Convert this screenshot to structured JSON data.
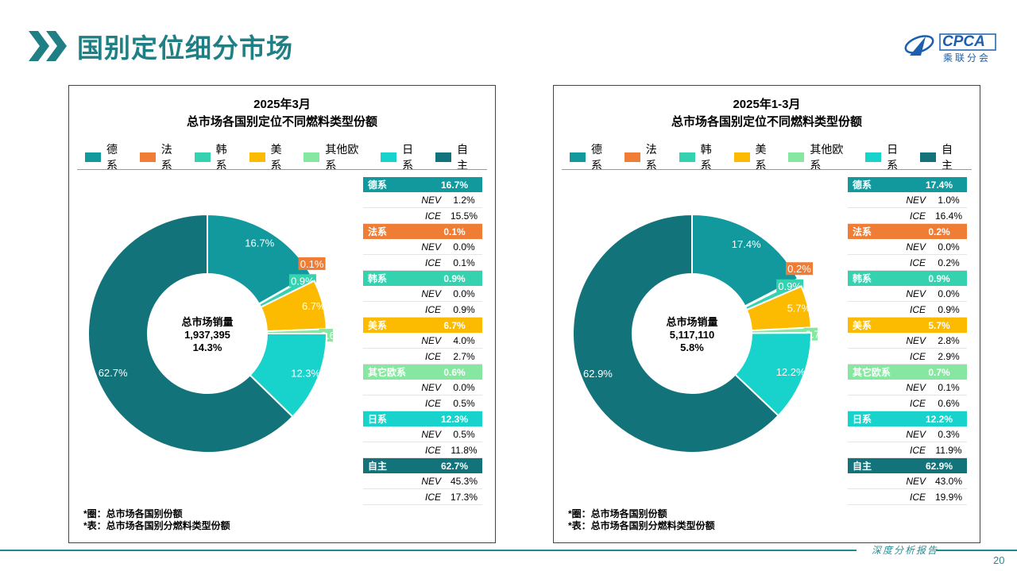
{
  "page_title": "国别定位细分市场",
  "logo": {
    "name": "CPCA",
    "sub": "乘联分会"
  },
  "footer": {
    "report_label": "深度分析报告",
    "page_number": "20"
  },
  "legend_items": [
    {
      "label": "德系",
      "color": "#12999e"
    },
    {
      "label": "法系",
      "color": "#ef7d36"
    },
    {
      "label": "韩系",
      "color": "#35d2b0"
    },
    {
      "label": "美系",
      "color": "#fcbb00"
    },
    {
      "label": "其他欧系",
      "color": "#86e8a0"
    },
    {
      "label": "日系",
      "color": "#17d3cb"
    },
    {
      "label": "自主",
      "color": "#13737a"
    }
  ],
  "chart_data": [
    {
      "type": "pie",
      "title": "2025年3月",
      "subtitle": "总市场各国别定位不同燃料类型份额",
      "center": {
        "label": "总市场销量",
        "value": "1,937,395",
        "growth": "14.3%"
      },
      "categories": [
        "德系",
        "法系",
        "韩系",
        "美系",
        "其他欧系",
        "日系",
        "自主"
      ],
      "values": [
        16.7,
        0.1,
        0.9,
        6.7,
        0.6,
        12.3,
        62.7
      ],
      "value_labels": [
        "16.7%",
        "0.1%",
        "0.9%",
        "6.7%",
        "0.6%",
        "12.3%",
        "62.7%"
      ],
      "table": [
        {
          "name": "德系",
          "total": "16.7%",
          "nev": "1.2%",
          "ice": "15.5%"
        },
        {
          "name": "法系",
          "total": "0.1%",
          "nev": "0.0%",
          "ice": "0.1%"
        },
        {
          "name": "韩系",
          "total": "0.9%",
          "nev": "0.0%",
          "ice": "0.9%"
        },
        {
          "name": "美系",
          "total": "6.7%",
          "nev": "4.0%",
          "ice": "2.7%"
        },
        {
          "name": "其它欧系",
          "total": "0.6%",
          "nev": "0.0%",
          "ice": "0.5%"
        },
        {
          "name": "日系",
          "total": "12.3%",
          "nev": "0.5%",
          "ice": "11.8%"
        },
        {
          "name": "自主",
          "total": "62.7%",
          "nev": "45.3%",
          "ice": "17.3%"
        }
      ],
      "row_labels": {
        "nev": "NEV",
        "ice": "ICE"
      },
      "notes": [
        "*圈：总市场各国别份额",
        "*表：总市场各国别分燃料类型份额"
      ]
    },
    {
      "type": "pie",
      "title": "2025年1-3月",
      "subtitle": "总市场各国别定位不同燃料类型份额",
      "center": {
        "label": "总市场销量",
        "value": "5,117,110",
        "growth": "5.8%"
      },
      "categories": [
        "德系",
        "法系",
        "韩系",
        "美系",
        "其他欧系",
        "日系",
        "自主"
      ],
      "values": [
        17.4,
        0.2,
        0.9,
        5.7,
        0.7,
        12.2,
        62.9
      ],
      "value_labels": [
        "17.4%",
        "0.2%",
        "0.9%",
        "5.7%",
        "0.7%",
        "12.2%",
        "62.9%"
      ],
      "table": [
        {
          "name": "德系",
          "total": "17.4%",
          "nev": "1.0%",
          "ice": "16.4%"
        },
        {
          "name": "法系",
          "total": "0.2%",
          "nev": "0.0%",
          "ice": "0.2%"
        },
        {
          "name": "韩系",
          "total": "0.9%",
          "nev": "0.0%",
          "ice": "0.9%"
        },
        {
          "name": "美系",
          "total": "5.7%",
          "nev": "2.8%",
          "ice": "2.9%"
        },
        {
          "name": "其它欧系",
          "total": "0.7%",
          "nev": "0.1%",
          "ice": "0.6%"
        },
        {
          "name": "日系",
          "total": "12.2%",
          "nev": "0.3%",
          "ice": "11.9%"
        },
        {
          "name": "自主",
          "total": "62.9%",
          "nev": "43.0%",
          "ice": "19.9%"
        }
      ],
      "row_labels": {
        "nev": "NEV",
        "ice": "ICE"
      },
      "notes": [
        "*圈：总市场各国别份额",
        "*表：总市场各国别分燃料类型份额"
      ]
    }
  ]
}
